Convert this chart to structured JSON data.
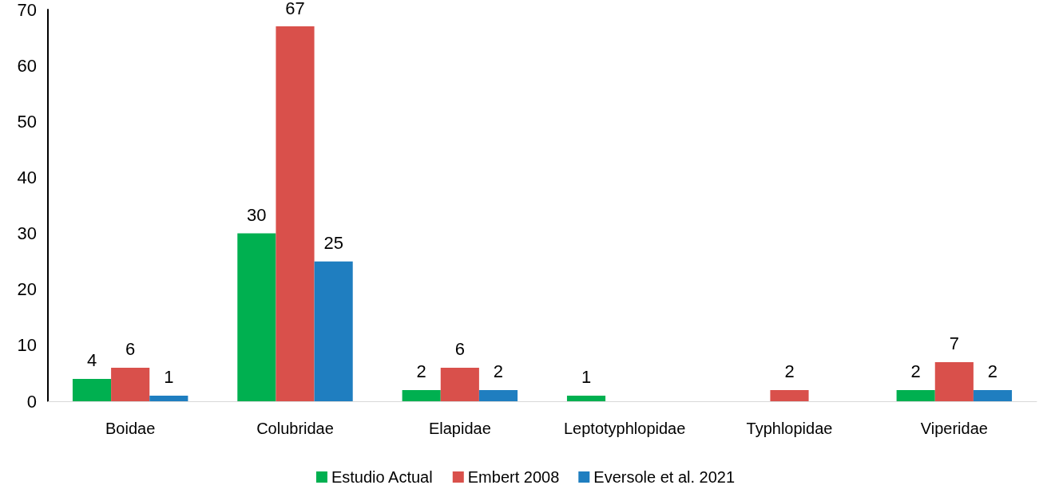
{
  "chart_data": {
    "type": "bar",
    "categories": [
      "Boidae",
      "Colubridae",
      "Elapidae",
      "Leptotyphlopidae",
      "Typhlopidae",
      "Viperidae"
    ],
    "series": [
      {
        "name": "Estudio Actual",
        "color": "#00b050",
        "values": [
          4,
          30,
          2,
          1,
          null,
          2
        ]
      },
      {
        "name": "Embert 2008",
        "color": "#d9504b",
        "values": [
          6,
          67,
          6,
          null,
          2,
          7
        ]
      },
      {
        "name": "Eversole et al. 2021",
        "color": "#1f7ec0",
        "values": [
          1,
          25,
          2,
          null,
          null,
          2
        ]
      }
    ],
    "ylim": [
      0,
      70
    ],
    "yticks": [
      0,
      10,
      20,
      30,
      40,
      50,
      60,
      70
    ],
    "data_labels": true,
    "grid": false,
    "legend": "bottom"
  }
}
